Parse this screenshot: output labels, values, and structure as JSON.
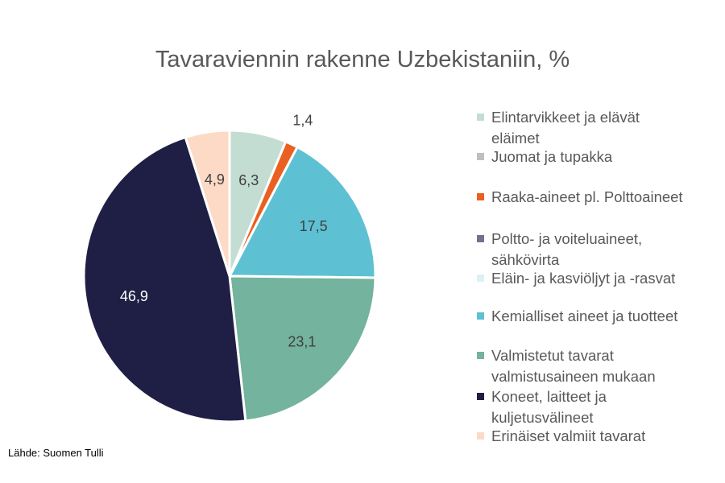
{
  "chart_data": {
    "type": "pie",
    "title": "Tavaraviennin rakenne Uzbekistaniin, %",
    "source": "Lähde: Suomen Tulli",
    "legend_position": "right",
    "slices": [
      {
        "label": "Elintarvikkeet ja elävät eläimet",
        "value": 6.3,
        "display": "6,3",
        "color": "#c3ddd2"
      },
      {
        "label": "Juomat ja tupakka",
        "value": 0,
        "display": "",
        "color": "#bfbfbf"
      },
      {
        "label": "Raaka-aineet pl. Polttoaineet",
        "value": 1.4,
        "display": "1,4",
        "color": "#ea6020"
      },
      {
        "label": "Poltto- ja voiteluaineet, sähkövirta",
        "value": 0,
        "display": "",
        "color": "#76708e"
      },
      {
        "label": "Eläin- ja kasviöljyt ja -rasvat",
        "value": 0,
        "display": "",
        "color": "#dcf0f5"
      },
      {
        "label": "Kemialliset aineet ja tuotteet",
        "value": 17.5,
        "display": "17,5",
        "color": "#5dc1d3"
      },
      {
        "label": "Valmistetut tavarat valmistusaineen mukaan",
        "value": 23.1,
        "display": "23,1",
        "color": "#74b39d"
      },
      {
        "label": "Koneet, laitteet ja kuljetusvälineet",
        "value": 46.9,
        "display": "46,9",
        "color": "#1f1f45"
      },
      {
        "label": "Erinäiset valmiit tavarat",
        "value": 4.9,
        "display": "4,9",
        "color": "#fddac6"
      }
    ]
  }
}
